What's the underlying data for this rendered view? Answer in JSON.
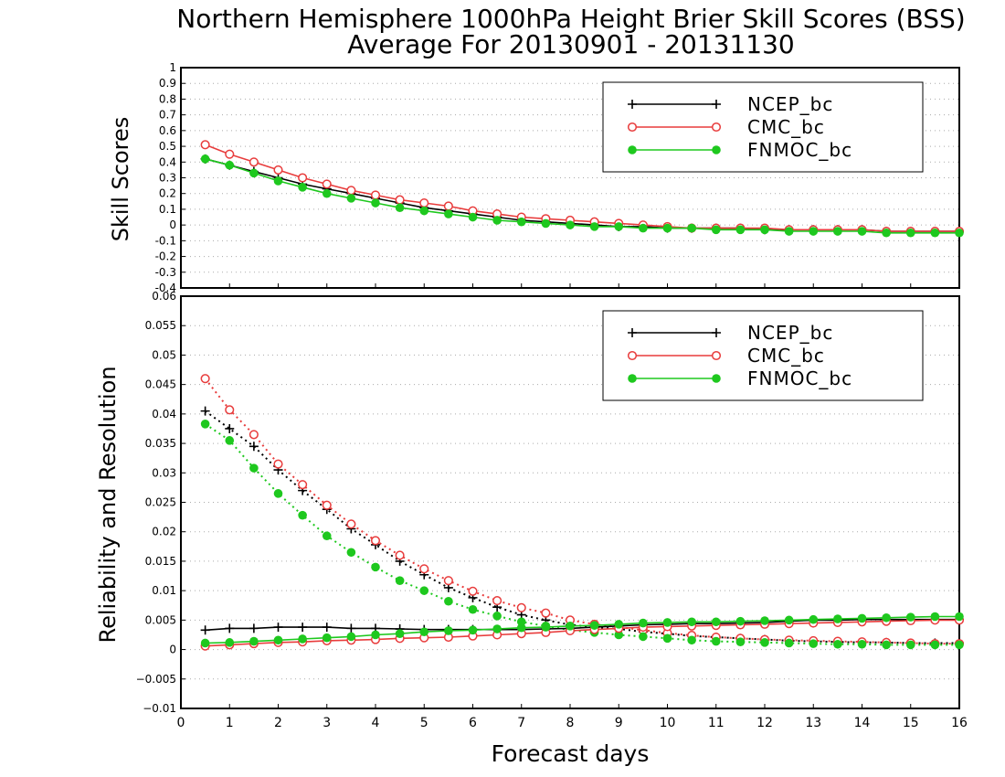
{
  "title": {
    "line1": "Northern Hemisphere 1000hPa Height Brier Skill Scores (BSS)",
    "line2": "Average For 20130901 - 20131130"
  },
  "colors": {
    "NCEP_bc": "#000000",
    "CMC_bc": "#e83c3c",
    "FNMOC_bc": "#1ec81e"
  },
  "chart_data": [
    {
      "type": "line",
      "ylabel": "Skill Scores",
      "xlabel": "",
      "xlim": [
        0,
        16
      ],
      "ylim": [
        -0.4,
        1
      ],
      "yticks": [
        -0.4,
        -0.3,
        -0.2,
        -0.1,
        0,
        0.1,
        0.2,
        0.3,
        0.4,
        0.5,
        0.6,
        0.7,
        0.8,
        0.9,
        1
      ],
      "ytick_labels": [
        "-0.4",
        "-0.3",
        "-0.2",
        "-0.1",
        "0",
        "0.1",
        "0.2",
        "0.3",
        "0.4",
        "0.5",
        "0.6",
        "0.7",
        "0.8",
        "0.9",
        "1"
      ],
      "grid": true,
      "legend": [
        "NCEP_bc",
        "CMC_bc",
        "FNMOC_bc"
      ],
      "legend_position": "top-right",
      "x": [
        0.5,
        1,
        1.5,
        2,
        2.5,
        3,
        3.5,
        4,
        4.5,
        5,
        5.5,
        6,
        6.5,
        7,
        7.5,
        8,
        8.5,
        9,
        9.5,
        10,
        10.5,
        11,
        11.5,
        12,
        12.5,
        13,
        13.5,
        14,
        14.5,
        15,
        15.5,
        16
      ],
      "series": [
        {
          "name": "NCEP_bc",
          "marker": "plus",
          "style": "solid",
          "values": [
            0.42,
            0.38,
            0.34,
            0.3,
            0.26,
            0.23,
            0.2,
            0.17,
            0.14,
            0.11,
            0.09,
            0.07,
            0.05,
            0.03,
            0.02,
            0.01,
            0.0,
            -0.01,
            -0.01,
            -0.02,
            -0.02,
            -0.02,
            -0.02,
            -0.03,
            -0.03,
            -0.03,
            -0.03,
            -0.03,
            -0.04,
            -0.04,
            -0.04,
            -0.04
          ]
        },
        {
          "name": "CMC_bc",
          "marker": "open-circle",
          "style": "solid",
          "values": [
            0.51,
            0.45,
            0.4,
            0.35,
            0.3,
            0.26,
            0.22,
            0.19,
            0.16,
            0.14,
            0.12,
            0.09,
            0.07,
            0.05,
            0.04,
            0.03,
            0.02,
            0.01,
            0.0,
            -0.01,
            -0.02,
            -0.02,
            -0.02,
            -0.02,
            -0.03,
            -0.03,
            -0.03,
            -0.03,
            -0.04,
            -0.04,
            -0.04,
            -0.04
          ]
        },
        {
          "name": "FNMOC_bc",
          "marker": "filled-circle",
          "style": "solid",
          "values": [
            0.42,
            0.38,
            0.33,
            0.28,
            0.24,
            0.2,
            0.17,
            0.14,
            0.11,
            0.09,
            0.07,
            0.05,
            0.03,
            0.02,
            0.01,
            0.0,
            -0.01,
            -0.01,
            -0.02,
            -0.02,
            -0.02,
            -0.03,
            -0.03,
            -0.03,
            -0.04,
            -0.04,
            -0.04,
            -0.04,
            -0.05,
            -0.05,
            -0.05,
            -0.05
          ]
        }
      ]
    },
    {
      "type": "line",
      "ylabel": "Reliability and Resolution",
      "xlabel": "Forecast days",
      "xlim": [
        0,
        16
      ],
      "ylim": [
        -0.01,
        0.06
      ],
      "xticks": [
        0,
        1,
        2,
        3,
        4,
        5,
        6,
        7,
        8,
        9,
        10,
        11,
        12,
        13,
        14,
        15,
        16
      ],
      "xtick_labels": [
        "0",
        "1",
        "2",
        "3",
        "4",
        "5",
        "6",
        "7",
        "8",
        "9",
        "10",
        "11",
        "12",
        "13",
        "14",
        "15",
        "16"
      ],
      "yticks": [
        -0.01,
        -0.005,
        0,
        0.005,
        0.01,
        0.015,
        0.02,
        0.025,
        0.03,
        0.035,
        0.04,
        0.045,
        0.05,
        0.055,
        0.06
      ],
      "ytick_labels": [
        "−0.01",
        "−0.005",
        "0",
        "0.005",
        "0.01",
        "0.015",
        "0.02",
        "0.025",
        "0.03",
        "0.035",
        "0.04",
        "0.045",
        "0.05",
        "0.055",
        "0.06"
      ],
      "grid": true,
      "legend": [
        "NCEP_bc",
        "CMC_bc",
        "FNMOC_bc"
      ],
      "legend_position": "top-right",
      "x": [
        0.5,
        1,
        1.5,
        2,
        2.5,
        3,
        3.5,
        4,
        4.5,
        5,
        5.5,
        6,
        6.5,
        7,
        7.5,
        8,
        8.5,
        9,
        9.5,
        10,
        10.5,
        11,
        11.5,
        12,
        12.5,
        13,
        13.5,
        14,
        14.5,
        15,
        15.5,
        16
      ],
      "series": [
        {
          "name": "NCEP_bc",
          "marker": "plus",
          "style": "dotted",
          "metric": "reliability",
          "values": [
            0.0405,
            0.0375,
            0.0345,
            0.0305,
            0.027,
            0.0238,
            0.0205,
            0.0178,
            0.015,
            0.0127,
            0.0105,
            0.0088,
            0.0072,
            0.0059,
            0.005,
            0.0042,
            0.0038,
            0.0035,
            0.003,
            0.0027,
            0.0023,
            0.0021,
            0.0019,
            0.0017,
            0.0015,
            0.0014,
            0.0013,
            0.0012,
            0.0012,
            0.0011,
            0.0011,
            0.0011
          ]
        },
        {
          "name": "CMC_bc",
          "marker": "open-circle",
          "style": "dotted",
          "metric": "reliability",
          "values": [
            0.046,
            0.0407,
            0.0365,
            0.0315,
            0.028,
            0.0245,
            0.0213,
            0.0185,
            0.016,
            0.0137,
            0.0117,
            0.0099,
            0.0083,
            0.0071,
            0.0062,
            0.005,
            0.0043,
            0.0038,
            0.0033,
            0.0028,
            0.0024,
            0.0021,
            0.0019,
            0.0017,
            0.0016,
            0.0015,
            0.0014,
            0.0013,
            0.0012,
            0.0011,
            0.001,
            0.001
          ]
        },
        {
          "name": "FNMOC_bc",
          "marker": "filled-circle",
          "style": "dotted",
          "metric": "reliability",
          "values": [
            0.0383,
            0.0355,
            0.0308,
            0.0265,
            0.0228,
            0.0193,
            0.0165,
            0.014,
            0.0117,
            0.01,
            0.0082,
            0.0068,
            0.0057,
            0.0047,
            0.004,
            0.0033,
            0.0029,
            0.0025,
            0.0022,
            0.0019,
            0.0016,
            0.0014,
            0.0013,
            0.0012,
            0.0011,
            0.001,
            0.0009,
            0.0009,
            0.0008,
            0.0008,
            0.0008,
            0.0008
          ]
        },
        {
          "name": "NCEP_bc",
          "marker": "plus",
          "style": "solid",
          "metric": "resolution",
          "values": [
            0.0033,
            0.0036,
            0.0036,
            0.0038,
            0.0038,
            0.0038,
            0.0036,
            0.0036,
            0.0035,
            0.0034,
            0.0034,
            0.0034,
            0.0034,
            0.0034,
            0.0035,
            0.0036,
            0.0038,
            0.004,
            0.0042,
            0.0043,
            0.0044,
            0.0044,
            0.0045,
            0.0046,
            0.0048,
            0.005,
            0.005,
            0.0051,
            0.0051,
            0.0051,
            0.0051,
            0.0051
          ]
        },
        {
          "name": "CMC_bc",
          "marker": "open-circle",
          "style": "solid",
          "metric": "resolution",
          "values": [
            0.0006,
            0.0008,
            0.001,
            0.0012,
            0.0013,
            0.0015,
            0.0016,
            0.0017,
            0.0019,
            0.002,
            0.0021,
            0.0023,
            0.0025,
            0.0027,
            0.0029,
            0.0032,
            0.0034,
            0.0036,
            0.0038,
            0.0039,
            0.004,
            0.0041,
            0.0042,
            0.0043,
            0.0044,
            0.0045,
            0.0046,
            0.0047,
            0.0048,
            0.0049,
            0.005,
            0.005
          ]
        },
        {
          "name": "FNMOC_bc",
          "marker": "filled-circle",
          "style": "solid",
          "metric": "resolution",
          "values": [
            0.0011,
            0.0012,
            0.0014,
            0.0016,
            0.0018,
            0.002,
            0.0022,
            0.0025,
            0.0027,
            0.003,
            0.0032,
            0.0033,
            0.0035,
            0.0037,
            0.0038,
            0.004,
            0.0041,
            0.0043,
            0.0045,
            0.0046,
            0.0047,
            0.0047,
            0.0048,
            0.0049,
            0.005,
            0.0051,
            0.0052,
            0.0053,
            0.0054,
            0.0055,
            0.0056,
            0.0056
          ]
        }
      ]
    }
  ]
}
